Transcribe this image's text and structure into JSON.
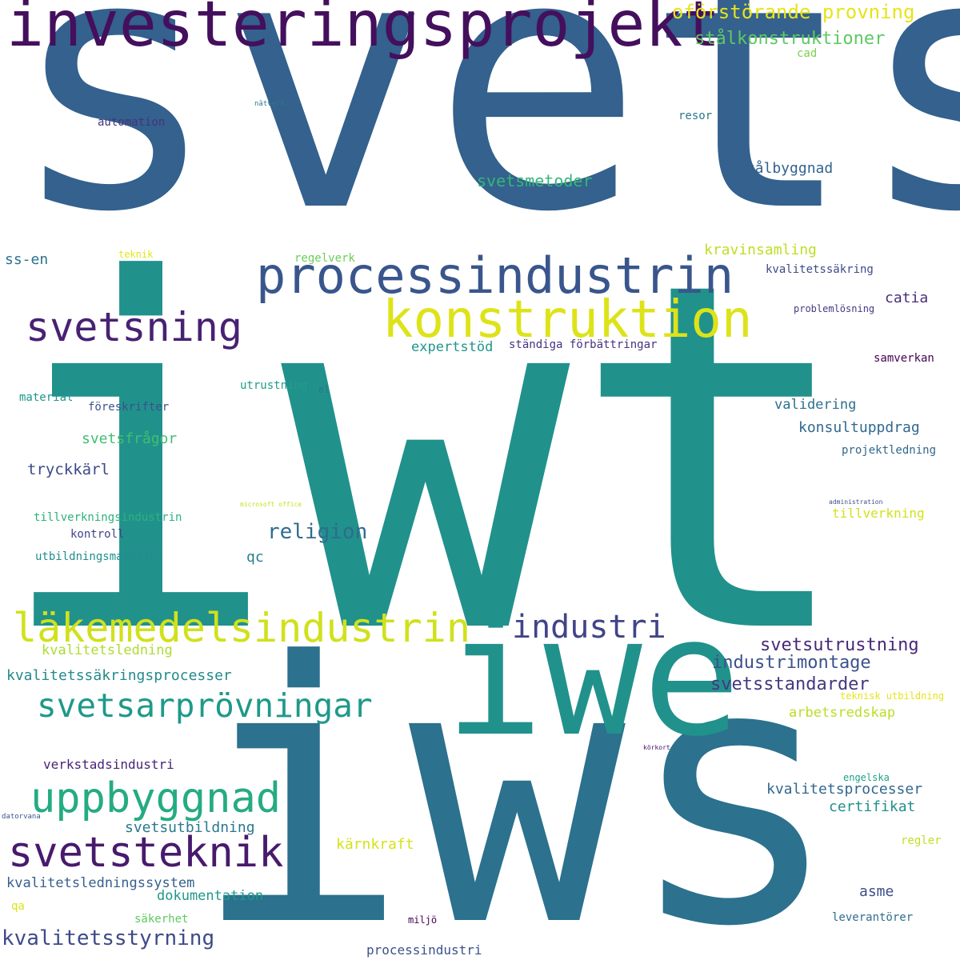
{
  "words": [
    {
      "text": "svets",
      "color": "#34618d"
    },
    {
      "text": "iwt",
      "color": "#21918c"
    },
    {
      "text": "iws",
      "color": "#2c718e"
    },
    {
      "text": "iwe",
      "color": "#21918c"
    },
    {
      "text": "investeringsprojekt",
      "color": "#440f5d"
    },
    {
      "text": "processindustrin",
      "color": "#39568c"
    },
    {
      "text": "konstruktion",
      "color": "#dde318"
    },
    {
      "text": "svetsning",
      "color": "#482173"
    },
    {
      "text": "läkemedelsindustrin",
      "color": "#d0e11c"
    },
    {
      "text": "industri",
      "color": "#414487"
    },
    {
      "text": "svetsarprövningar",
      "color": "#1f998a"
    },
    {
      "text": "uppbyggnad",
      "color": "#25ab82"
    },
    {
      "text": "svetsteknik",
      "color": "#481a6c"
    },
    {
      "text": "oförstörande provning",
      "color": "#e7e419"
    },
    {
      "text": "stålkonstruktioner",
      "color": "#5ec962"
    },
    {
      "text": "cad",
      "color": "#7ad151"
    },
    {
      "text": "nätverk",
      "color": "#2a788e"
    },
    {
      "text": "automation",
      "color": "#46337e"
    },
    {
      "text": "resor",
      "color": "#2a788e"
    },
    {
      "text": "stålbyggnad",
      "color": "#33638d"
    },
    {
      "text": "svetsmetoder",
      "color": "#35b779"
    },
    {
      "text": "ss-en",
      "color": "#2c728e"
    },
    {
      "text": "teknik",
      "color": "#e5e419"
    },
    {
      "text": "regelverk",
      "color": "#6ccd5a"
    },
    {
      "text": "kravinsamling",
      "color": "#bddf26"
    },
    {
      "text": "kvalitetssäkring",
      "color": "#3e4a89"
    },
    {
      "text": "catia",
      "color": "#472d7b"
    },
    {
      "text": "problemlösning",
      "color": "#443983"
    },
    {
      "text": "expertstöd",
      "color": "#1f968b"
    },
    {
      "text": "ständiga förbättringar",
      "color": "#46337e"
    },
    {
      "text": "samverkan",
      "color": "#440154"
    },
    {
      "text": "utrustning",
      "color": "#1f9e89"
    },
    {
      "text": "el",
      "color": "#2a788e"
    },
    {
      "text": "material",
      "color": "#1f968b"
    },
    {
      "text": "föreskrifter",
      "color": "#3b528b"
    },
    {
      "text": "validering",
      "color": "#2d708e"
    },
    {
      "text": "konsultuppdrag",
      "color": "#31688e"
    },
    {
      "text": "svetsfrågor",
      "color": "#42be71"
    },
    {
      "text": "projektledning",
      "color": "#31688e"
    },
    {
      "text": "tryckkärl",
      "color": "#3e4989"
    },
    {
      "text": "microsoft office",
      "color": "#c8e020"
    },
    {
      "text": "administration",
      "color": "#3b528b"
    },
    {
      "text": "tillverkningsindustrin",
      "color": "#2db27d"
    },
    {
      "text": "religion",
      "color": "#2f6c8e"
    },
    {
      "text": "tillverkning",
      "color": "#d2e21b"
    },
    {
      "text": "kontroll",
      "color": "#404588"
    },
    {
      "text": "utbildningsmaterial",
      "color": "#228d8d"
    },
    {
      "text": "qc",
      "color": "#277f8e"
    },
    {
      "text": "kvalitetsledning",
      "color": "#addc30"
    },
    {
      "text": "svetsutrustning",
      "color": "#482878"
    },
    {
      "text": "industrimontage",
      "color": "#3b528b"
    },
    {
      "text": "kvalitetssäkringsprocesser",
      "color": "#238a8d"
    },
    {
      "text": "svetsstandarder",
      "color": "#453781"
    },
    {
      "text": "teknisk utbildning",
      "color": "#e5e419"
    },
    {
      "text": "arbetsredskap",
      "color": "#bade28"
    },
    {
      "text": "körkort",
      "color": "#471164"
    },
    {
      "text": "verkstadsindustri",
      "color": "#482475"
    },
    {
      "text": "engelska",
      "color": "#1fa187"
    },
    {
      "text": "kvalitetsprocesser",
      "color": "#31688e"
    },
    {
      "text": "datorvana",
      "color": "#38598c"
    },
    {
      "text": "svetsutbildning",
      "color": "#2a788e"
    },
    {
      "text": "certifikat",
      "color": "#21908d"
    },
    {
      "text": "regler",
      "color": "#c2df23"
    },
    {
      "text": "kärnkraft",
      "color": "#d5e21a"
    },
    {
      "text": "kvalitetsledningssystem",
      "color": "#355f8d"
    },
    {
      "text": "asme",
      "color": "#3d4e8a"
    },
    {
      "text": "dokumentation",
      "color": "#1f988b"
    },
    {
      "text": "qa",
      "color": "#dde318"
    },
    {
      "text": "säkerhet",
      "color": "#5ec962"
    },
    {
      "text": "miljö",
      "color": "#440154"
    },
    {
      "text": "leverantörer",
      "color": "#2e6f8e"
    },
    {
      "text": "kvalitetsstyrning",
      "color": "#3e4a89"
    },
    {
      "text": "processindustri",
      "color": "#3b528b"
    }
  ]
}
